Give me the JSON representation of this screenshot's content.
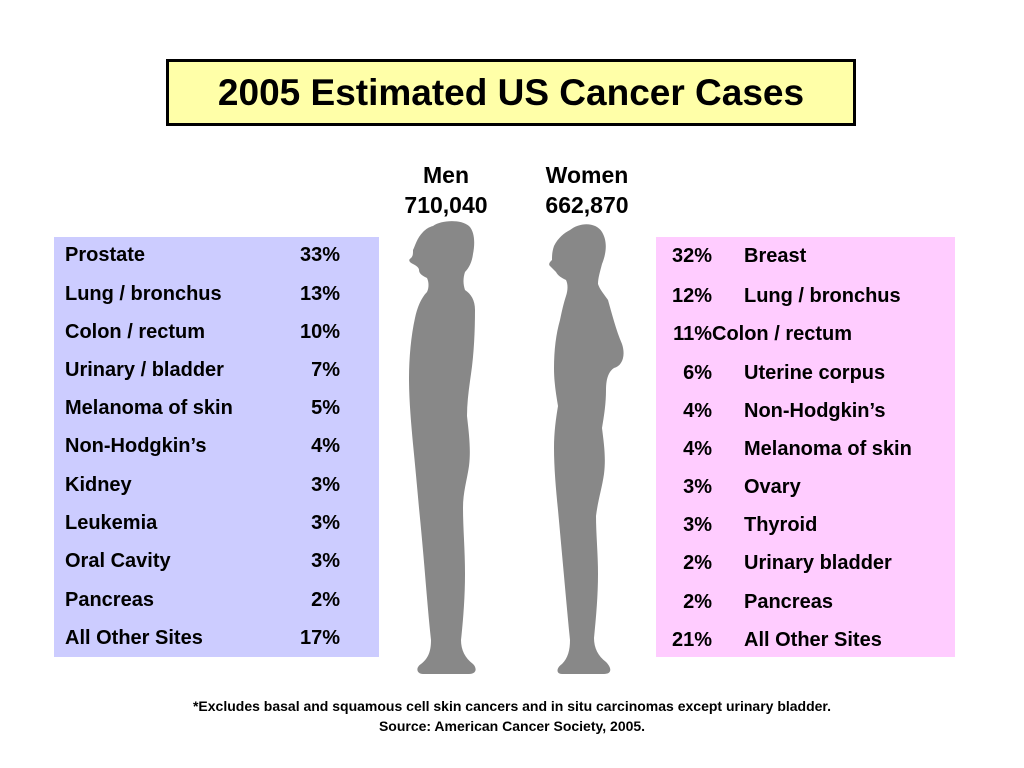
{
  "title": "2005 Estimated US Cancer Cases",
  "men": {
    "label": "Men",
    "total": "710,040",
    "rows": [
      {
        "site": "Prostate",
        "pct": "33%"
      },
      {
        "site": "Lung / bronchus",
        "pct": "13%"
      },
      {
        "site": "Colon / rectum",
        "pct": "10%"
      },
      {
        "site": "Urinary / bladder",
        "pct": "7%"
      },
      {
        "site": "Melanoma of skin",
        "pct": "5%"
      },
      {
        "site": "Non-Hodgkin’s",
        "pct": "4%"
      },
      {
        "site": "Kidney",
        "pct": "3%"
      },
      {
        "site": "Leukemia",
        "pct": "3%"
      },
      {
        "site": "Oral Cavity",
        "pct": "3%"
      },
      {
        "site": "Pancreas",
        "pct": "2%"
      },
      {
        "site": "All Other Sites",
        "pct": "17%"
      }
    ]
  },
  "women": {
    "label": "Women",
    "total": "662,870",
    "rows": [
      {
        "pct": "32%",
        "site": "Breast"
      },
      {
        "pct": "12%",
        "site": "Lung / bronchus"
      },
      {
        "pct": "11%",
        "site": "Colon / rectum"
      },
      {
        "pct": "6%",
        "site": "Uterine corpus"
      },
      {
        "pct": "4%",
        "site": "Non-Hodgkin’s"
      },
      {
        "pct": "4%",
        "site": "Melanoma of skin"
      },
      {
        "pct": "3%",
        "site": "Ovary"
      },
      {
        "pct": "3%",
        "site": "Thyroid"
      },
      {
        "pct": "2%",
        "site": "Urinary bladder"
      },
      {
        "pct": "2%",
        "site": "Pancreas"
      },
      {
        "pct": "21%",
        "site": "All Other Sites"
      }
    ]
  },
  "footnote": {
    "line1": "*Excludes basal and squamous cell skin cancers and in situ carcinomas except urinary bladder.",
    "line2": "Source: American Cancer Society, 2005."
  },
  "colors": {
    "title_bg": "#ffffa8",
    "men_panel": "#ccccff",
    "women_panel": "#ffccff",
    "silhouette": "#888888"
  }
}
